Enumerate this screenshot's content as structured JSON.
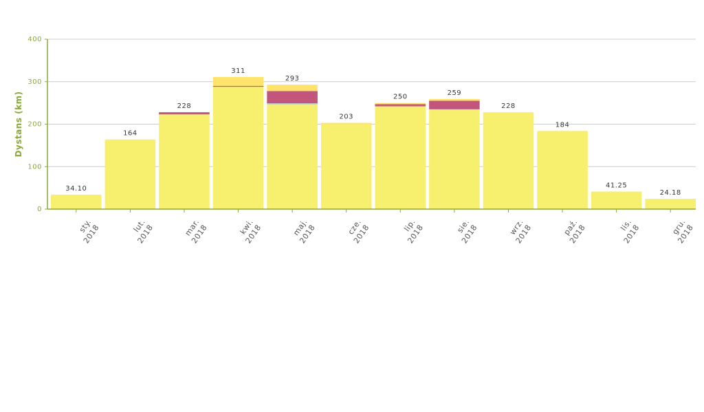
{
  "chart_data": {
    "type": "bar",
    "stacked": true,
    "ylabel": "Dystans (km)",
    "xlabel": "",
    "ylim": [
      0,
      400
    ],
    "yticks": [
      "0",
      "100",
      "200",
      "300",
      "400"
    ],
    "grid": true,
    "legend": "none",
    "categories": [
      [
        "sty.",
        "2018"
      ],
      [
        "lut.",
        "2018"
      ],
      [
        "mar.",
        "2018"
      ],
      [
        "kwi.",
        "2018"
      ],
      [
        "maj.",
        "2018"
      ],
      [
        "cze.",
        "2018"
      ],
      [
        "lip.",
        "2018"
      ],
      [
        "sie.",
        "2018"
      ],
      [
        "wrz.",
        "2018"
      ],
      [
        "paź.",
        "2018"
      ],
      [
        "lis.",
        "2018"
      ],
      [
        "gru.",
        "2018"
      ]
    ],
    "totals_labels": [
      "34.10",
      "164",
      "228",
      "311",
      "293",
      "203",
      "250",
      "259",
      "228",
      "184",
      "41.25",
      "24.18"
    ],
    "series": [
      {
        "color": "#f7ef6e",
        "values": [
          34.1,
          164,
          223,
          288,
          246,
          200,
          242,
          235,
          228,
          184,
          41.25,
          24.18
        ]
      },
      {
        "color": "#a9d9e8",
        "values": [
          0,
          0,
          0,
          0,
          3,
          0,
          0,
          0,
          0,
          0,
          0,
          0
        ]
      },
      {
        "color": "#c2557b",
        "values": [
          0,
          0,
          5,
          2,
          29,
          0,
          5,
          20,
          0,
          0,
          0,
          0
        ]
      },
      {
        "color": "#ffe36b",
        "values": [
          0,
          0,
          0,
          21,
          15,
          3,
          3,
          4,
          0,
          0,
          0,
          0
        ]
      }
    ],
    "colors": {
      "axis": "#8aa83a",
      "grid": "#cccccc"
    }
  }
}
